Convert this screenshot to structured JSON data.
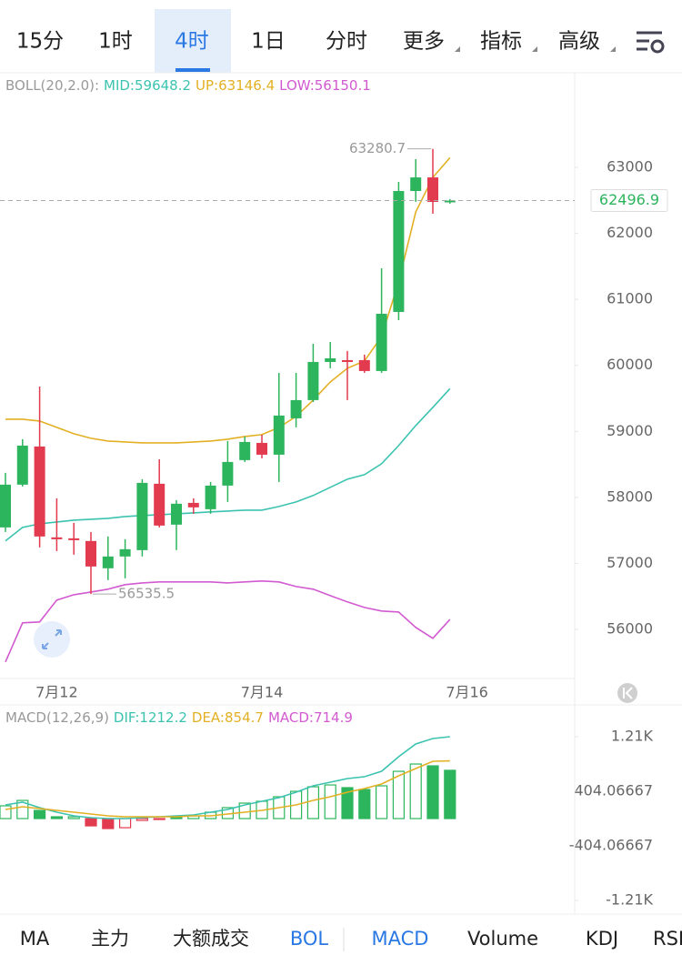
{
  "tabs": {
    "items": [
      "15分",
      "1时",
      "4时",
      "1日",
      "分时",
      "更多",
      "指标",
      "高级"
    ],
    "selected": 2
  },
  "chart_data": [
    {
      "type": "candlestick",
      "title": "BOLL(20,2.0):",
      "categories": [
        null,
        null,
        null,
        "7月12",
        null,
        null,
        null,
        null,
        null,
        null,
        null,
        null,
        null,
        null,
        null,
        "7月14",
        null,
        null,
        null,
        null,
        null,
        null,
        null,
        null,
        null,
        null,
        null,
        "7月16"
      ],
      "open": [
        57545,
        58193,
        58771,
        57394,
        57380,
        57339,
        56926,
        57105,
        57201,
        58207,
        57587,
        57917,
        57821,
        58179,
        58565,
        58826,
        58647,
        59198,
        59474,
        60052,
        60080,
        60080,
        59915,
        60810,
        62642,
        62848,
        62470,
        null
      ],
      "high": [
        58372,
        58882,
        59680,
        57986,
        57614,
        57476,
        57408,
        57366,
        58275,
        58578,
        57959,
        57986,
        58234,
        58854,
        58923,
        58950,
        59887,
        59887,
        60328,
        60355,
        60218,
        60163,
        61471,
        62780,
        63124,
        63280.7,
        62520,
        null
      ],
      "low": [
        57476,
        58165,
        57242,
        57187,
        57132,
        56535.5,
        56747,
        56774,
        57105,
        57545,
        57201,
        57752,
        57752,
        57931,
        58537,
        58592,
        58234,
        59061,
        59446,
        59956,
        59474,
        59887,
        59887,
        60686,
        62477,
        62298,
        62450,
        null
      ],
      "close": [
        58193,
        58785,
        57408,
        57366,
        57352,
        56953,
        57105,
        57215,
        58220,
        57573,
        57904,
        57849,
        58179,
        58537,
        58840,
        58647,
        59240,
        59474,
        60052,
        60107,
        60052,
        59915,
        60782,
        62642,
        62848,
        62477,
        62496.9,
        null
      ],
      "up_color": "#2db55d",
      "down_color": "#e23a4e",
      "series": [
        {
          "name": "MID:59648.2",
          "color": "#3cc3b0",
          "values": [
            57339,
            57545,
            57600,
            57628,
            57655,
            57669,
            57683,
            57711,
            57725,
            57738,
            57752,
            57766,
            57780,
            57793,
            57807,
            57807,
            57862,
            57931,
            58028,
            58152,
            58275,
            58344,
            58510,
            58785,
            59088,
            59364,
            59648.2,
            null
          ]
        },
        {
          "name": "UP:63146.4",
          "color": "#e3b024",
          "values": [
            59185,
            59185,
            59157,
            59061,
            58964,
            58895,
            58854,
            58840,
            58826,
            58826,
            58826,
            58840,
            58854,
            58882,
            58923,
            58950,
            59061,
            59226,
            59474,
            59749,
            59956,
            60066,
            60438,
            61264,
            62325,
            62848,
            63146.4,
            null
          ]
        },
        {
          "name": "LOW:56150.1",
          "color": "#d25ad0",
          "values": [
            55507,
            56099,
            56113,
            56444,
            56526,
            56567,
            56609,
            56678,
            56705,
            56719,
            56719,
            56719,
            56719,
            56705,
            56719,
            56733,
            56719,
            56650,
            56609,
            56512,
            56416,
            56333,
            56278,
            56264,
            56030,
            55865,
            56150.1,
            null
          ]
        }
      ],
      "ylim": [
        55270,
        64020
      ],
      "yticks": [
        56000,
        57000,
        58000,
        59000,
        60000,
        61000,
        62000,
        63000
      ]
    },
    {
      "type": "macd",
      "title": "MACD(12,26,9)",
      "up_color": "#2db55d",
      "down_color": "#e23a4e",
      "series": [
        {
          "name": "DIF:1212.2",
          "color": "#3cc3b0",
          "values": [
            202,
            242,
            162,
            94,
            40,
            13,
            0,
            0,
            13,
            27,
            40,
            54,
            94,
            135,
            202,
            256,
            310,
            391,
            485,
            539,
            593,
            620,
            700,
            916,
            1104,
            1185,
            1212.2
          ]
        },
        {
          "name": "DEA:854.7",
          "color": "#e3b024",
          "values": [
            135,
            175,
            148,
            121,
            94,
            67,
            40,
            27,
            27,
            27,
            27,
            40,
            40,
            67,
            94,
            121,
            162,
            202,
            269,
            323,
            391,
            444,
            512,
            633,
            741,
            848,
            854.7
          ]
        },
        {
          "name": "MACD:714.9",
          "color": "#d25ad0",
          "values": [
            189,
            269,
            121,
            27,
            27,
            -108,
            -148,
            -135,
            -27,
            -13,
            13,
            40,
            94,
            162,
            229,
            256,
            323,
            404,
            471,
            498,
            458,
            431,
            485,
            700,
            808,
            781,
            714.9
          ]
        }
      ],
      "ylim": [
        -1414,
        1347
      ],
      "yticks": [
        {
          "value": 1212.2,
          "label": "1.21K"
        },
        404.06667,
        -404.06667,
        {
          "value": -1212.2,
          "label": "-1.21K"
        }
      ]
    }
  ],
  "indicator_tabs": {
    "items": [
      "MA",
      "主力",
      "大额成交",
      "BOL",
      "MACD",
      "Volume",
      "KDJ",
      "RSI"
    ],
    "active": [
      3,
      4
    ]
  }
}
